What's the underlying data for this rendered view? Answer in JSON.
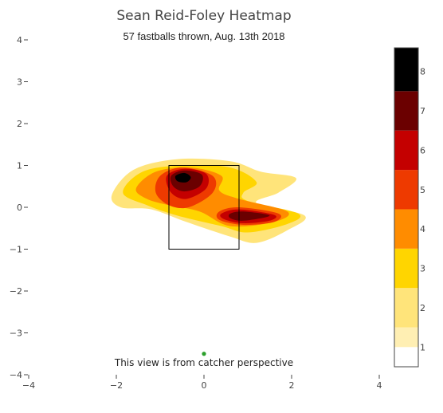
{
  "chart_data": {
    "type": "heatmap",
    "title": "Sean Reid-Foley Heatmap",
    "subtitle": "57 fastballs thrown, Aug. 13th 2018",
    "annotation": "This view is from catcher perspective",
    "xlim": [
      -4,
      4
    ],
    "ylim": [
      -4,
      4
    ],
    "x_ticks": [
      -4,
      -2,
      0,
      2,
      4
    ],
    "y_ticks": [
      -4,
      -3,
      -2,
      -1,
      0,
      1,
      2,
      3,
      4
    ],
    "strike_zone": {
      "x": [
        -0.8,
        0.8
      ],
      "y": [
        -1,
        1
      ]
    },
    "catcher_marker": {
      "x": 0,
      "y": -3.5,
      "color": "#2ca02c"
    },
    "contours": [
      {
        "level": 0.5,
        "points": [
          [
            -1.5,
            1.4
          ],
          [
            -1.0,
            1.7
          ],
          [
            0.2,
            1.6
          ],
          [
            1.0,
            1.2
          ],
          [
            1.8,
            0.9
          ],
          [
            2.2,
            0.6
          ],
          [
            1.5,
            0.4
          ],
          [
            1.3,
            0.0
          ],
          [
            2.3,
            -0.4
          ],
          [
            2.0,
            -0.9
          ],
          [
            1.6,
            -1.4
          ],
          [
            1.0,
            -1.1
          ],
          [
            0.0,
            -0.6
          ],
          [
            -1.2,
            -0.1
          ],
          [
            -2.1,
            0.4
          ],
          [
            -1.8,
            1.0
          ]
        ]
      },
      {
        "level": 1.5,
        "points": [
          [
            -2.1,
            0.3
          ],
          [
            -1.6,
            0.9
          ],
          [
            -0.6,
            1.15
          ],
          [
            0.6,
            1.1
          ],
          [
            1.3,
            0.85
          ],
          [
            2.1,
            0.7
          ],
          [
            1.7,
            0.35
          ],
          [
            1.2,
            0.1
          ],
          [
            2.3,
            -0.2
          ],
          [
            1.9,
            -0.55
          ],
          [
            1.2,
            -0.85
          ],
          [
            0.6,
            -0.7
          ],
          [
            -0.4,
            -0.35
          ],
          [
            -1.2,
            -0.05
          ],
          [
            -1.9,
            0.0
          ]
        ]
      },
      {
        "level": 2.5,
        "points": [
          [
            -1.85,
            0.35
          ],
          [
            -1.4,
            0.85
          ],
          [
            -0.5,
            1.0
          ],
          [
            0.6,
            0.95
          ],
          [
            1.2,
            0.6
          ],
          [
            0.9,
            0.35
          ],
          [
            1.0,
            0.15
          ],
          [
            2.15,
            -0.15
          ],
          [
            1.9,
            -0.4
          ],
          [
            1.0,
            -0.6
          ],
          [
            0.4,
            -0.45
          ],
          [
            -0.6,
            -0.2
          ],
          [
            -1.3,
            0.05
          ]
        ]
      },
      {
        "level": 3.5,
        "points": [
          [
            -1.55,
            0.45
          ],
          [
            -1.1,
            0.85
          ],
          [
            -0.3,
            0.95
          ],
          [
            0.4,
            0.75
          ],
          [
            0.35,
            0.4
          ],
          [
            0.8,
            0.2
          ],
          [
            1.9,
            -0.1
          ],
          [
            1.6,
            -0.35
          ],
          [
            0.6,
            -0.45
          ],
          [
            -0.1,
            -0.1
          ],
          [
            -0.8,
            0.05
          ],
          [
            -1.3,
            0.2
          ]
        ]
      },
      {
        "level": 4.5,
        "points": [
          [
            -1.0,
            0.75
          ],
          [
            -0.5,
            0.95
          ],
          [
            0.2,
            0.75
          ],
          [
            0.2,
            0.35
          ],
          [
            -0.35,
            0.0
          ],
          [
            -0.8,
            0.05
          ],
          [
            -1.1,
            0.35
          ]
        ]
      },
      {
        "level": 4.5,
        "points": [
          [
            0.35,
            -0.1
          ],
          [
            0.8,
            0.0
          ],
          [
            1.7,
            -0.15
          ],
          [
            1.6,
            -0.35
          ],
          [
            0.9,
            -0.42
          ],
          [
            0.35,
            -0.3
          ]
        ]
      },
      {
        "level": 5.5,
        "points": [
          [
            -0.85,
            0.75
          ],
          [
            -0.45,
            0.92
          ],
          [
            0.05,
            0.8
          ],
          [
            0.05,
            0.45
          ],
          [
            -0.4,
            0.2
          ],
          [
            -0.75,
            0.35
          ]
        ]
      },
      {
        "level": 5.5,
        "points": [
          [
            0.4,
            -0.15
          ],
          [
            0.8,
            -0.05
          ],
          [
            1.6,
            -0.18
          ],
          [
            1.5,
            -0.32
          ],
          [
            0.9,
            -0.38
          ],
          [
            0.45,
            -0.28
          ]
        ]
      },
      {
        "level": 6.5,
        "points": [
          [
            -0.75,
            0.75
          ],
          [
            -0.45,
            0.88
          ],
          [
            -0.05,
            0.78
          ],
          [
            -0.1,
            0.5
          ],
          [
            -0.45,
            0.38
          ],
          [
            -0.7,
            0.5
          ]
        ]
      },
      {
        "level": 6.5,
        "points": [
          [
            0.6,
            -0.15
          ],
          [
            0.9,
            -0.1
          ],
          [
            1.5,
            -0.2
          ],
          [
            0.9,
            -0.32
          ],
          [
            0.6,
            -0.26
          ]
        ]
      },
      {
        "level": 7.5,
        "points": [
          [
            -0.65,
            0.75
          ],
          [
            -0.45,
            0.82
          ],
          [
            -0.3,
            0.72
          ],
          [
            -0.4,
            0.6
          ],
          [
            -0.6,
            0.62
          ]
        ]
      }
    ],
    "colorscale": {
      "ticks": [
        1,
        2,
        3,
        4,
        5,
        6,
        7,
        8
      ],
      "bands": [
        {
          "from": 0.5,
          "to": 1.0,
          "color": "#ffffff"
        },
        {
          "from": 1.0,
          "to": 1.5,
          "color": "#ffefb3"
        },
        {
          "from": 1.5,
          "to": 2.5,
          "color": "#ffe47a"
        },
        {
          "from": 2.5,
          "to": 3.5,
          "color": "#ffd500"
        },
        {
          "from": 3.5,
          "to": 4.5,
          "color": "#ff8c00"
        },
        {
          "from": 4.5,
          "to": 5.5,
          "color": "#ee3a00"
        },
        {
          "from": 5.5,
          "to": 6.5,
          "color": "#c40000"
        },
        {
          "from": 6.5,
          "to": 7.5,
          "color": "#6b0000"
        },
        {
          "from": 7.5,
          "to": 8.6,
          "color": "#000000"
        }
      ]
    }
  }
}
